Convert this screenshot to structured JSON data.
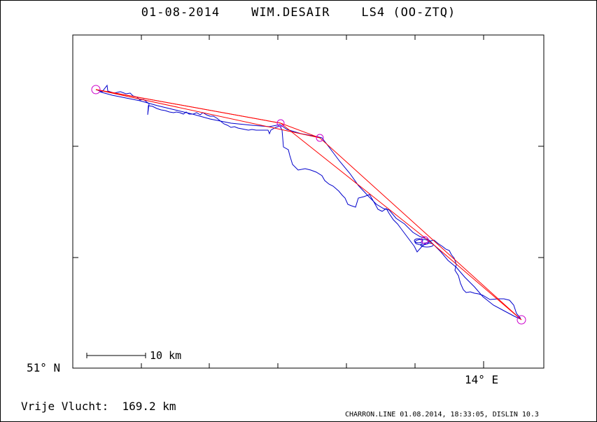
{
  "header": {
    "date": "01-08-2014",
    "pilot": "WIM.DESAIR",
    "glider": "LS4 (OO-ZTQ)"
  },
  "axes": {
    "lat_label": "51° N",
    "lon_label": "14° E"
  },
  "scale_bar": {
    "label": "10 km"
  },
  "summary": {
    "label": "Vrije Vlucht:",
    "value": "169.2 km"
  },
  "footer": {
    "text": "CHARRON.LINE 01.08.2014, 18:33:05, DISLIN 10.3"
  },
  "colors": {
    "track": "#0000cc",
    "task_line": "#ff0000",
    "turnpoint": "#cc00cc",
    "frame": "#000000"
  }
}
